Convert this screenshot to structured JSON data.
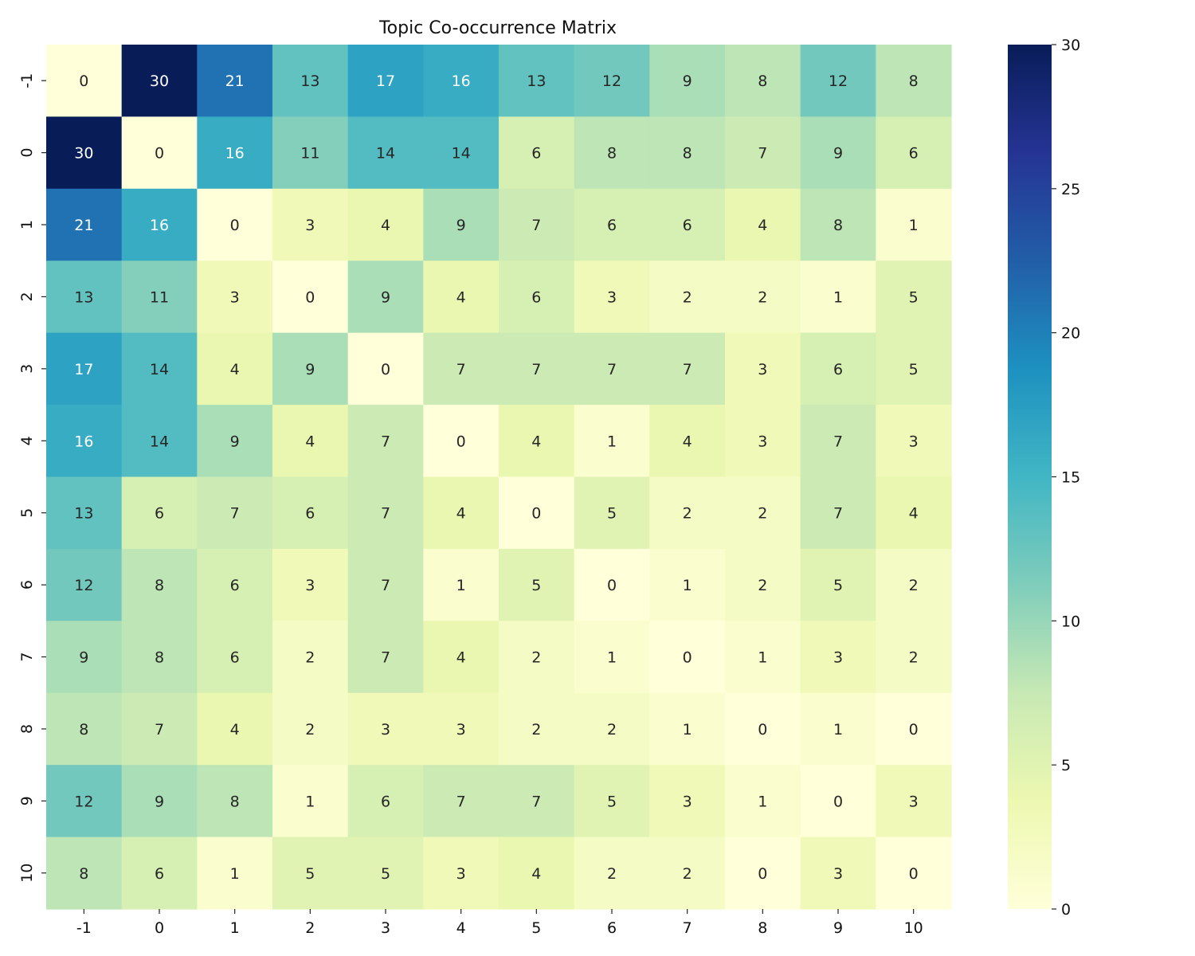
{
  "chart_data": {
    "type": "heatmap",
    "title": "Topic Co-occurrence Matrix",
    "xlabel": "",
    "ylabel": "",
    "x_categories": [
      "-1",
      "0",
      "1",
      "2",
      "3",
      "4",
      "5",
      "6",
      "7",
      "8",
      "9",
      "10"
    ],
    "y_categories": [
      "-1",
      "0",
      "1",
      "2",
      "3",
      "4",
      "5",
      "6",
      "7",
      "8",
      "9",
      "10"
    ],
    "values": [
      [
        0,
        30,
        21,
        13,
        17,
        16,
        13,
        12,
        9,
        8,
        12,
        8
      ],
      [
        30,
        0,
        16,
        11,
        14,
        14,
        6,
        8,
        8,
        7,
        9,
        6
      ],
      [
        21,
        16,
        0,
        3,
        4,
        9,
        7,
        6,
        6,
        4,
        8,
        1
      ],
      [
        13,
        11,
        3,
        0,
        9,
        4,
        6,
        3,
        2,
        2,
        1,
        5
      ],
      [
        17,
        14,
        4,
        9,
        0,
        7,
        7,
        7,
        7,
        3,
        6,
        5
      ],
      [
        16,
        14,
        9,
        4,
        7,
        0,
        4,
        1,
        4,
        3,
        7,
        3
      ],
      [
        13,
        6,
        7,
        6,
        7,
        4,
        0,
        5,
        2,
        2,
        7,
        4
      ],
      [
        12,
        8,
        6,
        3,
        7,
        1,
        5,
        0,
        1,
        2,
        5,
        2
      ],
      [
        9,
        8,
        6,
        2,
        7,
        4,
        2,
        1,
        0,
        1,
        3,
        2
      ],
      [
        8,
        7,
        4,
        2,
        3,
        3,
        2,
        2,
        1,
        0,
        1,
        0
      ],
      [
        12,
        9,
        8,
        1,
        6,
        7,
        7,
        5,
        3,
        1,
        0,
        3
      ],
      [
        8,
        6,
        1,
        5,
        5,
        3,
        4,
        2,
        2,
        0,
        3,
        0
      ]
    ],
    "colorscale": "YlGnBu",
    "vmin": 0,
    "vmax": 30,
    "colorbar_ticks": [
      "0",
      "5",
      "10",
      "15",
      "20",
      "25",
      "30"
    ],
    "annotations": true,
    "legend": "colorbar-right"
  }
}
